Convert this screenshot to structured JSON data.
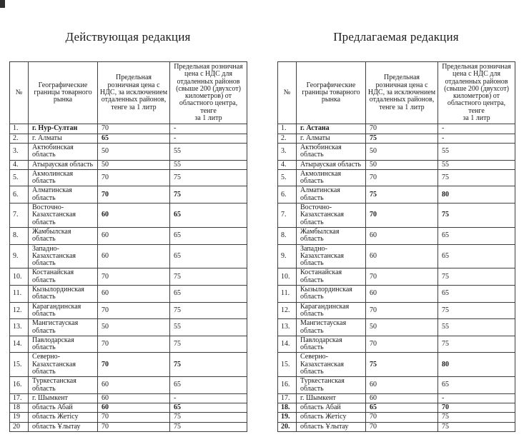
{
  "left": {
    "title": "Действующая редакция",
    "headers": {
      "num": "№",
      "name": "Географические\nграницы товарного\nрынка",
      "price": "Предельная\nрозничная цена с\nНДС, за исключением\nотдаленных районов,\nтенге за 1 литр",
      "price_remote": "Предельная розничная\nцена с НДС для\nотдаленных районов\n(свыше 200 (двухсот)\nкилометров) от\nобластного центра, тенге\nза 1 литр"
    },
    "rows": [
      {
        "n": "1.",
        "name": "г. Нур-Султан",
        "v1": "70",
        "v2": "-",
        "nameB": true
      },
      {
        "n": "2.",
        "name": "г. Алматы",
        "v1": "65",
        "v2": "-",
        "v1B": true
      },
      {
        "n": "3.",
        "name": "Актюбинская область",
        "v1": "50",
        "v2": "55"
      },
      {
        "n": "4.",
        "name": "Атырауская область",
        "v1": "50",
        "v2": "55"
      },
      {
        "n": "5.",
        "name": "Акмолинская область",
        "v1": "70",
        "v2": "75"
      },
      {
        "n": "6.",
        "name": "Алматинская область",
        "v1": "70",
        "v2": "75",
        "v1B": true,
        "v2B": true
      },
      {
        "n": "7.",
        "name": "Восточно-Казахстанская область",
        "v1": "60",
        "v2": "65",
        "v1B": true,
        "v2B": true
      },
      {
        "n": "8.",
        "name": "Жамбылская область",
        "v1": "60",
        "v2": "65"
      },
      {
        "n": "9.",
        "name": "Западно-Казахстанская область",
        "v1": "60",
        "v2": "65"
      },
      {
        "n": "10.",
        "name": "Костанайская область",
        "v1": "70",
        "v2": "75"
      },
      {
        "n": "11.",
        "name": "Кызылординская область",
        "v1": "60",
        "v2": "65"
      },
      {
        "n": "12.",
        "name": "Карагандинская область",
        "v1": "70",
        "v2": "75"
      },
      {
        "n": "13.",
        "name": "Мангистауская область",
        "v1": "50",
        "v2": "55"
      },
      {
        "n": "14.",
        "name": "Павлодарская область",
        "v1": "70",
        "v2": "75"
      },
      {
        "n": "15.",
        "name": "Северно-Казахстанская область",
        "v1": "70",
        "v2": "75",
        "v1B": true,
        "v2B": true
      },
      {
        "n": "16.",
        "name": "Туркестанская область",
        "v1": "60",
        "v2": "65"
      },
      {
        "n": "17.",
        "name": "г. Шымкент",
        "v1": "60",
        "v2": "-"
      },
      {
        "n": "18",
        "name": "область Абай",
        "v1": "60",
        "v2": "65",
        "v1B": true,
        "v2B": true
      },
      {
        "n": "19",
        "name": "область Жетісу",
        "v1": "70",
        "v2": "75"
      },
      {
        "n": "20",
        "name": "область Ұлытау",
        "v1": "70",
        "v2": "75"
      }
    ]
  },
  "right": {
    "title": "Предлагаемая редакция",
    "headers": {
      "num": "№",
      "name": "Географические\nграницы товарного\nрынка",
      "price": "Предельная\nрозничная цена с\nНДС, за исключением\nотдаленных районов,\nтенге за 1 литр",
      "price_remote": "Предельная розничная\nцена с НДС для\nотдаленных районов\n(свыше 200 (двухсот)\nкилометров) от\nобластного центра, тенге\nза 1 литр"
    },
    "rows": [
      {
        "n": "1.",
        "name": "г. Астана",
        "v1": "70",
        "v2": "-",
        "nameB": true
      },
      {
        "n": "2.",
        "name": "г. Алматы",
        "v1": "75",
        "v2": "-",
        "v1B": true
      },
      {
        "n": "3.",
        "name": "Актюбинская область",
        "v1": "50",
        "v2": "55"
      },
      {
        "n": "4.",
        "name": "Атырауская область",
        "v1": "50",
        "v2": "55"
      },
      {
        "n": "5.",
        "name": "Акмолинская область",
        "v1": "70",
        "v2": "75"
      },
      {
        "n": "6.",
        "name": "Алматинская область",
        "v1": "75",
        "v2": "80",
        "v1B": true,
        "v2B": true
      },
      {
        "n": "7.",
        "name": "Восточно-Казахстанская область",
        "v1": "70",
        "v2": "75",
        "v1B": true,
        "v2B": true
      },
      {
        "n": "8.",
        "name": "Жамбылская область",
        "v1": "60",
        "v2": "65"
      },
      {
        "n": "9.",
        "name": "Западно-Казахстанская область",
        "v1": "60",
        "v2": "65"
      },
      {
        "n": "10.",
        "name": "Костанайская область",
        "v1": "70",
        "v2": "75"
      },
      {
        "n": "11.",
        "name": "Кызылординская область",
        "v1": "60",
        "v2": "65"
      },
      {
        "n": "12.",
        "name": "Карагандинская область",
        "v1": "70",
        "v2": "75"
      },
      {
        "n": "13.",
        "name": "Мангистауская область",
        "v1": "50",
        "v2": "55"
      },
      {
        "n": "14.",
        "name": "Павлодарская область",
        "v1": "70",
        "v2": "75"
      },
      {
        "n": "15.",
        "name": "Северно-Казахстанская область",
        "v1": "75",
        "v2": "80",
        "v1B": true,
        "v2B": true
      },
      {
        "n": "16.",
        "name": "Туркестанская область",
        "v1": "60",
        "v2": "65"
      },
      {
        "n": "17.",
        "name": "г. Шымкент",
        "v1": "60",
        "v2": "-"
      },
      {
        "n": "18.",
        "name": "область Абай",
        "v1": "65",
        "v2": "70",
        "nB": true,
        "v1B": true,
        "v2B": true
      },
      {
        "n": "19.",
        "name": "область Жетісу",
        "v1": "70",
        "v2": "75",
        "nB": true
      },
      {
        "n": "20.",
        "name": "область Ұлытау",
        "v1": "70",
        "v2": "75",
        "nB": true
      }
    ]
  }
}
